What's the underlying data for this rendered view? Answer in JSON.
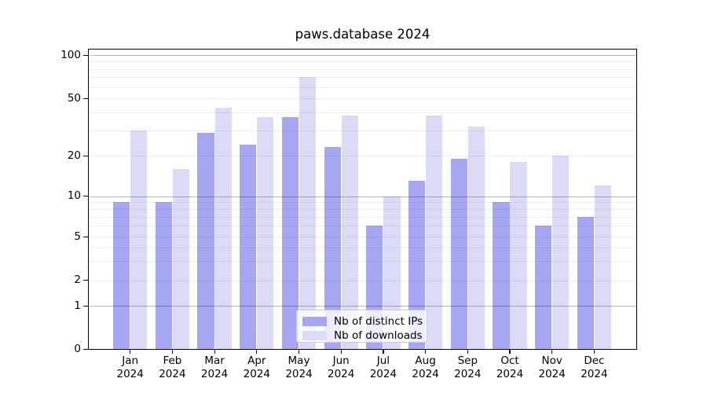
{
  "title": "paws.database 2024",
  "chart_data": {
    "type": "bar",
    "title": "paws.database 2024",
    "categories": [
      "Jan 2024",
      "Feb 2024",
      "Mar 2024",
      "Apr 2024",
      "May 2024",
      "Jun 2024",
      "Jul 2024",
      "Aug 2024",
      "Sep 2024",
      "Oct 2024",
      "Nov 2024",
      "Dec 2024"
    ],
    "series": [
      {
        "name": "Nb of distinct IPs",
        "color": "#a6a6f2",
        "values": [
          9,
          9,
          29,
          24,
          37,
          23,
          6,
          13,
          19,
          9,
          6,
          7
        ]
      },
      {
        "name": "Nb of downloads",
        "color": "#dbdbf8",
        "values": [
          30,
          16,
          43,
          37,
          70,
          38,
          10,
          38,
          32,
          18,
          20,
          12
        ]
      }
    ],
    "xlabel": "",
    "ylabel": "",
    "yscale": "symlog",
    "ylim": [
      0,
      112
    ],
    "y_ticks": [
      0,
      1,
      2,
      5,
      10,
      20,
      50,
      100
    ],
    "y_major_gridlines": [
      1,
      10,
      100
    ],
    "y_minor_gridlines": [
      2,
      3,
      4,
      5,
      6,
      7,
      8,
      9,
      20,
      30,
      40,
      50,
      60,
      70,
      80,
      90
    ],
    "grid": true,
    "legend_position": "lower center"
  },
  "legend": {
    "items": [
      {
        "label": "Nb of distinct IPs"
      },
      {
        "label": "Nb of downloads"
      }
    ]
  },
  "colors": {
    "grid_minor": "rgba(0,0,0,0.07)",
    "grid_major": "rgba(0,0,0,0.28)",
    "spine": "#000000",
    "background": "#ffffff"
  }
}
